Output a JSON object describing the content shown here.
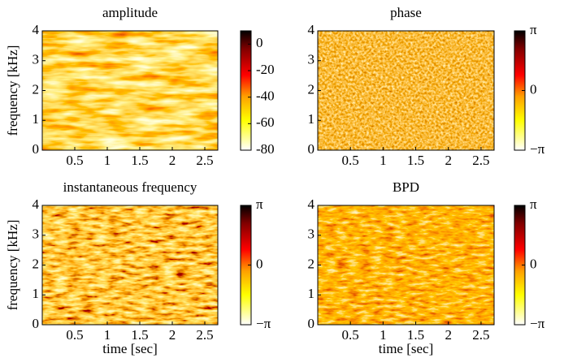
{
  "chart_data": [
    {
      "type": "heatmap",
      "title": "amplitude",
      "ylabel": "frequency [kHz]",
      "colormap": "hot_r",
      "xlim": [
        0,
        2.7
      ],
      "xticks": [
        0.5,
        1,
        1.5,
        2,
        2.5
      ],
      "ylim": [
        0,
        4
      ],
      "yticks": [
        0,
        1,
        2,
        3,
        4
      ],
      "clim": [
        -80,
        10
      ],
      "cticks": [
        0,
        -20,
        -40,
        -60,
        -80
      ]
    },
    {
      "type": "heatmap",
      "title": "phase",
      "colormap": "hot_r",
      "xlim": [
        0,
        2.7
      ],
      "xticks": [
        0.5,
        1,
        1.5,
        2,
        2.5
      ],
      "ylim": [
        0,
        4
      ],
      "yticks": [
        0,
        1,
        2,
        3,
        4
      ],
      "clim": [
        -3.1416,
        3.1416
      ],
      "cticks": [
        {
          "value": 3.1416,
          "label": "π"
        },
        0,
        {
          "value": -3.1416,
          "label": "−π"
        }
      ]
    },
    {
      "type": "heatmap",
      "title": "instantaneous frequency",
      "ylabel": "frequency [kHz]",
      "xlabel": "time [sec]",
      "colormap": "hot_r",
      "xlim": [
        0,
        2.7
      ],
      "xticks": [
        0.5,
        1,
        1.5,
        2,
        2.5
      ],
      "ylim": [
        0,
        4
      ],
      "yticks": [
        0,
        1,
        2,
        3,
        4
      ],
      "clim": [
        -3.1416,
        3.1416
      ],
      "cticks": [
        {
          "value": 3.1416,
          "label": "π"
        },
        0,
        {
          "value": -3.1416,
          "label": "−π"
        }
      ]
    },
    {
      "type": "heatmap",
      "title": "BPD",
      "xlabel": "time [sec]",
      "colormap": "hot_r",
      "xlim": [
        0,
        2.7
      ],
      "xticks": [
        0.5,
        1,
        1.5,
        2,
        2.5
      ],
      "ylim": [
        0,
        4
      ],
      "yticks": [
        0,
        1,
        2,
        3,
        4
      ],
      "clim": [
        -3.1416,
        3.1416
      ],
      "cticks": [
        {
          "value": 3.1416,
          "label": "π"
        },
        0,
        {
          "value": -3.1416,
          "label": "−π"
        }
      ]
    }
  ]
}
